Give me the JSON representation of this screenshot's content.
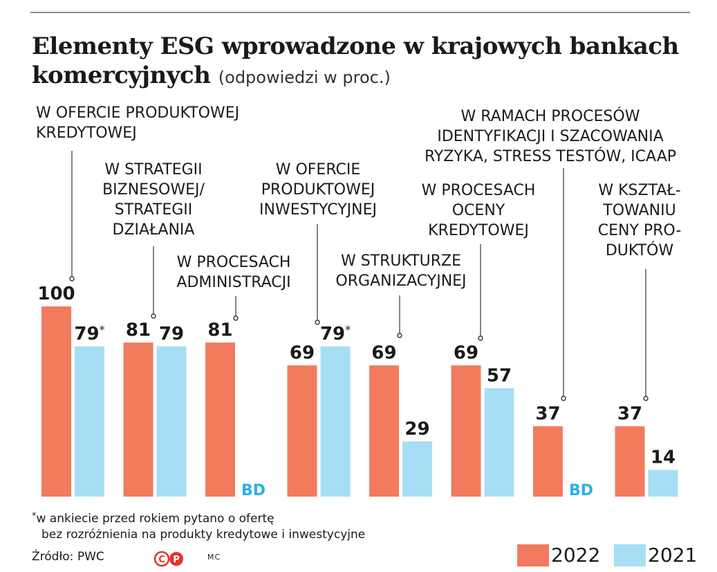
{
  "title": "Elementy ESG wprowadzone w krajowych bankach komercyjnych",
  "subtitle": "(odpowiedzi w proc.)",
  "footnote": {
    "marker": "*",
    "line1": "w ankiecie przed rokiem pytano o ofertę",
    "line2": "bez rozróżnienia na produkty kredytowe i inwestycyjne"
  },
  "source": "Źródło: PWC",
  "copyright_mark": "©Ⓟ",
  "author": "MC",
  "legend": [
    {
      "label": "2022",
      "color": "#f27b5e"
    },
    {
      "label": "2021",
      "color": "#a7def5"
    }
  ],
  "colors": {
    "2022": "#f27b5e",
    "2021": "#a7def5",
    "bd_text": "#2bb0e8"
  },
  "chart_data": {
    "type": "bar",
    "categories": [
      "W OFERCIE PRODUKTOWEJ KREDYTOWEJ",
      "W STRATEGII BIZNESOWEJ/ STRATEGII DZIAŁANIA",
      "W PROCESACH ADMINISTRACJI",
      "W OFERCIE PRODUKTOWEJ INWESTYCYJNEJ",
      "W STRUKTURZE ORGANIZACYJNEJ",
      "W PROCESACH OCENY KREDYTOWEJ",
      "W RAMACH PROCESÓW IDENTYFIKACJI I SZACOWANIA RYZYKA, STRESS TESTÓW, ICAAP",
      "W KSZTAŁTOWANIU CENY PRODUKTÓW"
    ],
    "category_label_lines": [
      [
        "W OFERCIE PRODUKTOWEJ",
        "KREDYTOWEJ"
      ],
      [
        "W STRATEGII",
        "BIZNESOWEJ/",
        "STRATEGII",
        "DZIAŁANIA"
      ],
      [
        "W PROCESACH",
        "ADMINISTRACJI"
      ],
      [
        "W OFERCIE",
        "PRODUKTOWEJ",
        "INWESTYCYJNEJ"
      ],
      [
        "W STRUKTURZE",
        "ORGANIZACYJNEJ"
      ],
      [
        "W PROCESACH",
        "OCENY",
        "KREDYTOWEJ"
      ],
      [
        "W RAMACH PROCESÓW",
        "IDENTYFIKACJI I SZACOWANIA",
        "RYZYKA, STRESS TESTÓW, ICAAP"
      ],
      [
        "W KSZTAŁ-",
        "TOWANIU",
        "CENY PRO-",
        "DUKTÓW"
      ]
    ],
    "series": [
      {
        "name": "2022",
        "values": [
          100,
          81,
          81,
          69,
          69,
          69,
          37,
          37
        ],
        "labels": [
          "100",
          "81",
          "81",
          "69",
          "69",
          "69",
          "37",
          "37"
        ]
      },
      {
        "name": "2021",
        "values": [
          79,
          79,
          null,
          79,
          29,
          57,
          null,
          14
        ],
        "labels": [
          "79*",
          "79",
          "BD",
          "79*",
          "29",
          "57",
          "BD",
          "14"
        ]
      }
    ],
    "ylim": [
      0,
      100
    ],
    "grid": false,
    "legend_position": "bottom-right"
  }
}
